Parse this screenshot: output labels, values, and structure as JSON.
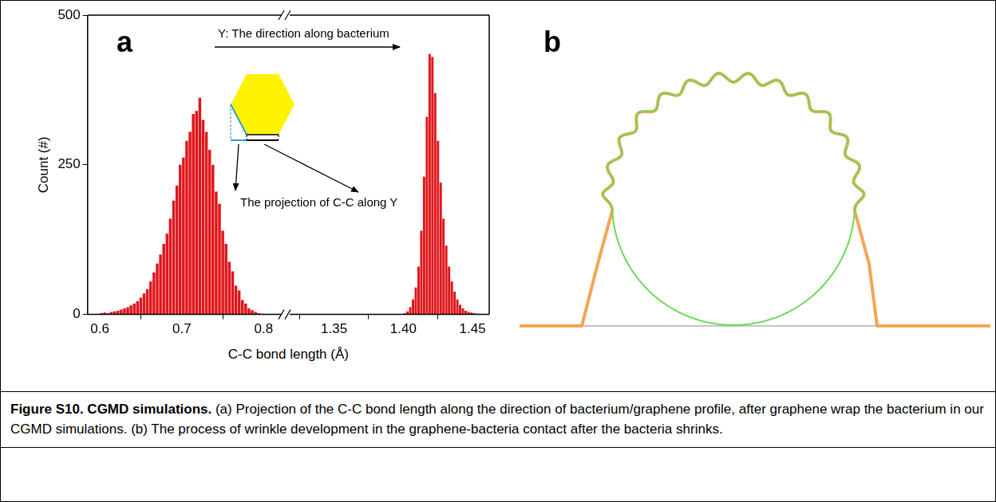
{
  "figure": {
    "panel_a": {
      "letter": "a",
      "annotations": [
        "Y: The direction along bacterium",
        "The projection of C-C along Y"
      ]
    },
    "panel_b": {
      "letter": "b"
    },
    "caption": {
      "label": "Figure S10.",
      "heading": "CGMD simulations.",
      "text": "(a) Projection of the C-C bond length along the direction of bacterium/graphene profile, after graphene wrap the bacterium in our CGMD simulations. (b) The process of wrinkle development in the graphene-bacteria contact after the bacteria shrinks."
    }
  },
  "chart_data": [
    {
      "type": "histogram",
      "color": "#e0161b",
      "grid": false,
      "xlabel": "C-C bond length (Å)",
      "ylabel": "Count (#)",
      "bins": [
        0.6,
        0.604,
        0.608,
        0.612,
        0.616,
        0.62,
        0.624,
        0.628,
        0.632,
        0.636,
        0.64,
        0.644,
        0.648,
        0.652,
        0.656,
        0.66,
        0.664,
        0.668,
        0.672,
        0.676,
        0.68,
        0.684,
        0.688,
        0.692,
        0.696,
        0.7,
        0.704,
        0.708,
        0.712,
        0.716,
        0.72,
        0.724,
        0.728,
        0.732,
        0.736,
        0.74,
        0.744,
        0.748,
        0.752,
        0.756,
        0.76,
        0.764,
        0.768,
        0.772,
        0.776,
        0.78,
        0.784,
        0.788,
        0.792,
        0.796,
        0.8
      ],
      "counts": [
        2,
        3,
        2,
        4,
        5,
        6,
        8,
        10,
        12,
        15,
        18,
        22,
        28,
        35,
        42,
        55,
        70,
        85,
        100,
        118,
        135,
        160,
        190,
        215,
        250,
        262,
        290,
        305,
        335,
        340,
        362,
        325,
        305,
        275,
        250,
        205,
        185,
        140,
        118,
        88,
        72,
        48,
        40,
        24,
        18,
        10,
        7,
        4,
        2,
        1
      ],
      "xlim": [
        0.585,
        0.822
      ],
      "xticks": [
        0.6,
        0.7,
        0.8
      ],
      "ylim": [
        0,
        500
      ],
      "yticks": [
        0,
        250,
        500
      ]
    },
    {
      "type": "histogram",
      "color": "#e0161b",
      "grid": false,
      "tick_labels": "x",
      "bins": [
        1.4,
        1.402,
        1.404,
        1.406,
        1.408,
        1.41,
        1.412,
        1.414,
        1.416,
        1.418,
        1.42,
        1.422,
        1.424,
        1.426,
        1.428,
        1.43,
        1.432,
        1.434,
        1.436,
        1.438,
        1.44,
        1.442,
        1.444,
        1.446,
        1.448,
        1.45,
        1.452,
        1.454,
        1.456,
        1.458,
        1.46
      ],
      "counts": [
        2,
        5,
        12,
        25,
        45,
        80,
        140,
        230,
        330,
        435,
        430,
        370,
        290,
        220,
        160,
        115,
        80,
        55,
        38,
        25,
        16,
        10,
        6,
        4,
        3,
        2,
        1,
        1,
        0,
        0
      ],
      "xlim": [
        1.318,
        1.462
      ],
      "xticks": [
        1.35,
        {
          "value": 1.4,
          "label": "1.40"
        },
        1.45
      ],
      "ylim": [
        0,
        500
      ]
    }
  ]
}
